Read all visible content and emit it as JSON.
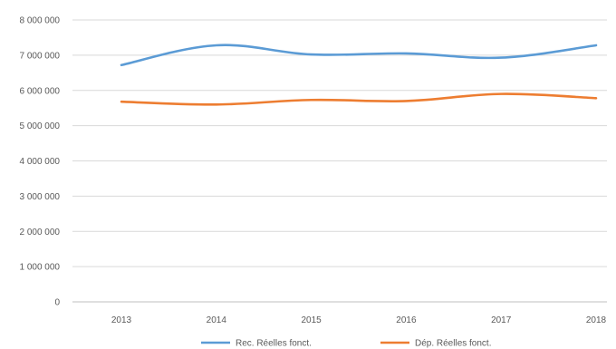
{
  "chart_data": {
    "type": "line",
    "title": "",
    "xlabel": "",
    "ylabel": "",
    "categories": [
      "2013",
      "2014",
      "2015",
      "2016",
      "2017",
      "2018"
    ],
    "ylim": [
      0,
      8000000
    ],
    "yticks": [
      0,
      1000000,
      2000000,
      3000000,
      4000000,
      5000000,
      6000000,
      7000000,
      8000000
    ],
    "ytick_labels": [
      "0",
      "1 000 000",
      "2 000 000",
      "3 000 000",
      "4 000 000",
      "5 000 000",
      "6 000 000",
      "7 000 000",
      "8 000 000"
    ],
    "grid": true,
    "legend_position": "bottom",
    "series": [
      {
        "name": "Rec. Réelles fonct.",
        "color": "#5b9bd5",
        "values": [
          6720000,
          7280000,
          7020000,
          7050000,
          6930000,
          7280000
        ]
      },
      {
        "name": "Dép. Réelles fonct.",
        "color": "#ed7d31",
        "values": [
          5680000,
          5600000,
          5730000,
          5700000,
          5900000,
          5780000
        ]
      }
    ]
  }
}
